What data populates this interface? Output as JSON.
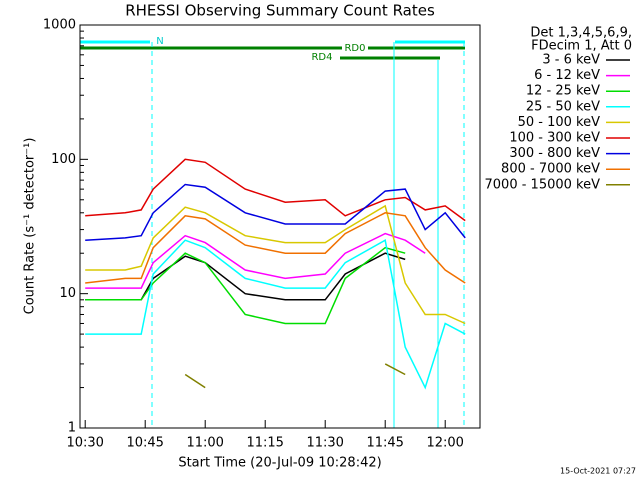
{
  "chart_data": {
    "type": "line",
    "title": "RHESSI Observing Summary Count Rates",
    "xlabel": "Start Time (20-Jul-09 10:28:42)",
    "ylabel": "Count Rate (s⁻¹ detector⁻¹)",
    "legend_header": [
      "Det 1,3,4,5,6,9,",
      "FDecim 1, Att 0"
    ],
    "annotations": [
      "N",
      "RD0",
      "RD4"
    ],
    "timestamp": "15-Oct-2021 07:27",
    "log_y": true,
    "xlim": [
      "10:28:42",
      "12:08:42"
    ],
    "xticks": [
      "10:30",
      "10:45",
      "11:00",
      "11:15",
      "11:30",
      "11:45",
      "12:00"
    ],
    "ylim": [
      1,
      1000
    ],
    "yticks": [
      1,
      10,
      100,
      1000
    ],
    "x": [
      "10:30",
      "10:40",
      "10:44",
      "10:47",
      "10:55",
      "11:00",
      "11:10",
      "11:20",
      "11:30",
      "11:35",
      "11:45",
      "11:50",
      "11:55",
      "12:00",
      "12:05"
    ],
    "series": [
      {
        "name": "3 - 6 keV",
        "color": "#000000",
        "values": [
          9,
          9,
          9,
          13,
          19,
          17,
          10,
          9,
          9,
          14,
          20,
          18,
          null,
          null,
          null
        ]
      },
      {
        "name": "6 - 12 keV",
        "color": "#ff00ff",
        "values": [
          11,
          11,
          11,
          17,
          27,
          24,
          15,
          13,
          14,
          20,
          28,
          25,
          20,
          null,
          null
        ]
      },
      {
        "name": "12 - 25 keV",
        "color": "#00dd00",
        "values": [
          9,
          9,
          9,
          12,
          20,
          17,
          7,
          6,
          6,
          13,
          22,
          20,
          null,
          null,
          null
        ]
      },
      {
        "name": "25 - 50 keV",
        "color": "#00ffff",
        "values": [
          5,
          5,
          5,
          14,
          25,
          22,
          13,
          11,
          11,
          17,
          25,
          4,
          2,
          6,
          5
        ]
      },
      {
        "name": "50 - 100 keV",
        "color": "#d8c800",
        "values": [
          15,
          15,
          16,
          26,
          44,
          40,
          27,
          24,
          24,
          30,
          45,
          12,
          7,
          7,
          6
        ]
      },
      {
        "name": "100 - 300 keV",
        "color": "#e00000",
        "values": [
          38,
          40,
          42,
          60,
          100,
          95,
          60,
          48,
          50,
          38,
          50,
          52,
          42,
          45,
          35
        ]
      },
      {
        "name": "300 - 800 keV",
        "color": "#0000e0",
        "values": [
          25,
          26,
          27,
          40,
          65,
          62,
          40,
          33,
          33,
          33,
          58,
          60,
          30,
          40,
          26
        ]
      },
      {
        "name": "800 - 7000 keV",
        "color": "#f07000",
        "values": [
          12,
          13,
          13,
          22,
          38,
          36,
          23,
          20,
          20,
          28,
          40,
          38,
          22,
          15,
          12
        ]
      },
      {
        "name": "7000 - 15000 keV",
        "color": "#808000",
        "values": [
          null,
          null,
          null,
          null,
          2.5,
          2,
          null,
          null,
          null,
          null,
          3,
          2.5,
          null,
          null,
          null
        ]
      }
    ]
  }
}
